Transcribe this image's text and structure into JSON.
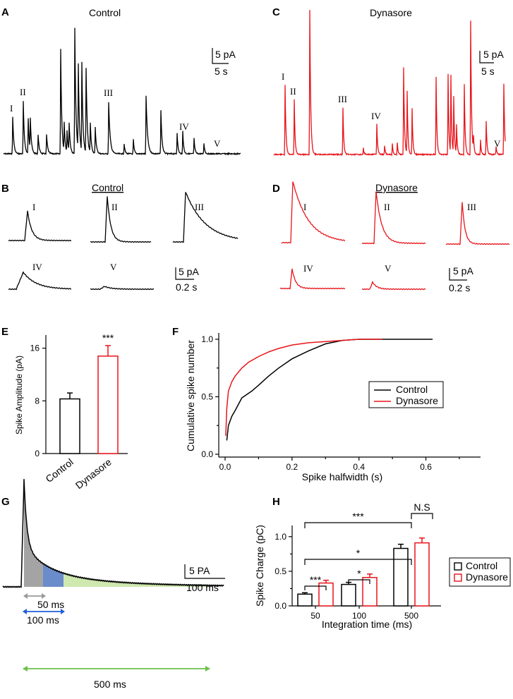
{
  "figure": {
    "panel_labels": [
      "A",
      "B",
      "C",
      "D",
      "E",
      "F",
      "G",
      "H"
    ],
    "colors": {
      "control": "#000000",
      "dynasore": "#e8141a",
      "g_grey": "#9a9a9a",
      "g_blue": "#5b7fc4",
      "g_green": "#c9e6a6",
      "arrow_grey": "#9a9a9a",
      "arrow_blue": "#1f5fd8",
      "arrow_green": "#6cc04a"
    }
  },
  "panelA": {
    "title": "Control",
    "scale_y": "5 pA",
    "scale_x": "5 s",
    "events": [
      "I",
      "II",
      "III",
      "IV",
      "V"
    ]
  },
  "panelB": {
    "title": "Control",
    "scale_y": "5 pA",
    "scale_x": "0.2 s",
    "events": [
      "I",
      "II",
      "III",
      "IV",
      "V"
    ]
  },
  "panelC": {
    "title": "Dynasore",
    "scale_y": "5 pA",
    "scale_x": "5 s",
    "events": [
      "I",
      "II",
      "III",
      "IV",
      "V"
    ]
  },
  "panelD": {
    "title": "Dynasore",
    "scale_y": "5 pA",
    "scale_x": "0.2 s",
    "events": [
      "I",
      "II",
      "III",
      "IV",
      "V"
    ]
  },
  "panelG": {
    "scale_y": "5 PA",
    "scale_x": "100 ms",
    "arrows": [
      "50 ms",
      "100 ms",
      "500 ms"
    ]
  },
  "chart_data": [
    {
      "id": "E",
      "type": "bar",
      "ylabel": "Spike Amplitude (pA)",
      "categories": [
        "Control",
        "Dynasore"
      ],
      "values": [
        8.3,
        14.8
      ],
      "errors": [
        0.9,
        1.6
      ],
      "ylim": [
        0,
        18
      ],
      "yticks": [
        "0",
        "8",
        "16"
      ],
      "significance": "***"
    },
    {
      "id": "F",
      "type": "line",
      "xlabel": "Spike halfwidth (s)",
      "ylabel": "Cumulative spike number",
      "xlim": [
        0,
        0.7
      ],
      "ylim": [
        0,
        1.05
      ],
      "xticks": [
        "0.0",
        "0.2",
        "0.4",
        "0.6"
      ],
      "yticks": [
        "0.0",
        "0.5",
        "1.0"
      ],
      "legend": [
        "Control",
        "Dynasore"
      ],
      "legend_position": "center-right",
      "series": [
        {
          "name": "Control",
          "x": [
            0.005,
            0.01,
            0.02,
            0.03,
            0.05,
            0.08,
            0.1,
            0.13,
            0.16,
            0.2,
            0.25,
            0.3,
            0.35,
            0.4,
            0.5,
            0.62
          ],
          "y": [
            0.12,
            0.25,
            0.33,
            0.38,
            0.49,
            0.55,
            0.6,
            0.68,
            0.75,
            0.83,
            0.9,
            0.96,
            0.99,
            1.0,
            1.0,
            1.0
          ]
        },
        {
          "name": "Dynasore",
          "x": [
            0.002,
            0.005,
            0.01,
            0.02,
            0.03,
            0.05,
            0.07,
            0.1,
            0.13,
            0.16,
            0.2,
            0.25,
            0.3,
            0.35,
            0.4,
            0.47
          ],
          "y": [
            0.16,
            0.4,
            0.55,
            0.63,
            0.68,
            0.75,
            0.8,
            0.85,
            0.89,
            0.92,
            0.95,
            0.97,
            0.98,
            0.99,
            1.0,
            1.0
          ]
        }
      ]
    },
    {
      "id": "H",
      "type": "bar",
      "xlabel": "Integration time (ms)",
      "ylabel": "Spike Charge (pC)",
      "categories": [
        "50",
        "100",
        "500"
      ],
      "ylim": [
        0,
        1.05
      ],
      "yticks": [
        "0.0",
        "0.5",
        "1.0"
      ],
      "legend": [
        "Control",
        "Dynasore"
      ],
      "legend_position": "right",
      "series": [
        {
          "name": "Control",
          "values": [
            0.17,
            0.31,
            0.83
          ],
          "errors": [
            0.02,
            0.03,
            0.06
          ]
        },
        {
          "name": "Dynasore",
          "values": [
            0.33,
            0.41,
            0.91
          ],
          "errors": [
            0.04,
            0.05,
            0.07
          ]
        }
      ],
      "annotations": [
        "***",
        "*",
        "*",
        "***",
        "N.S"
      ]
    }
  ]
}
